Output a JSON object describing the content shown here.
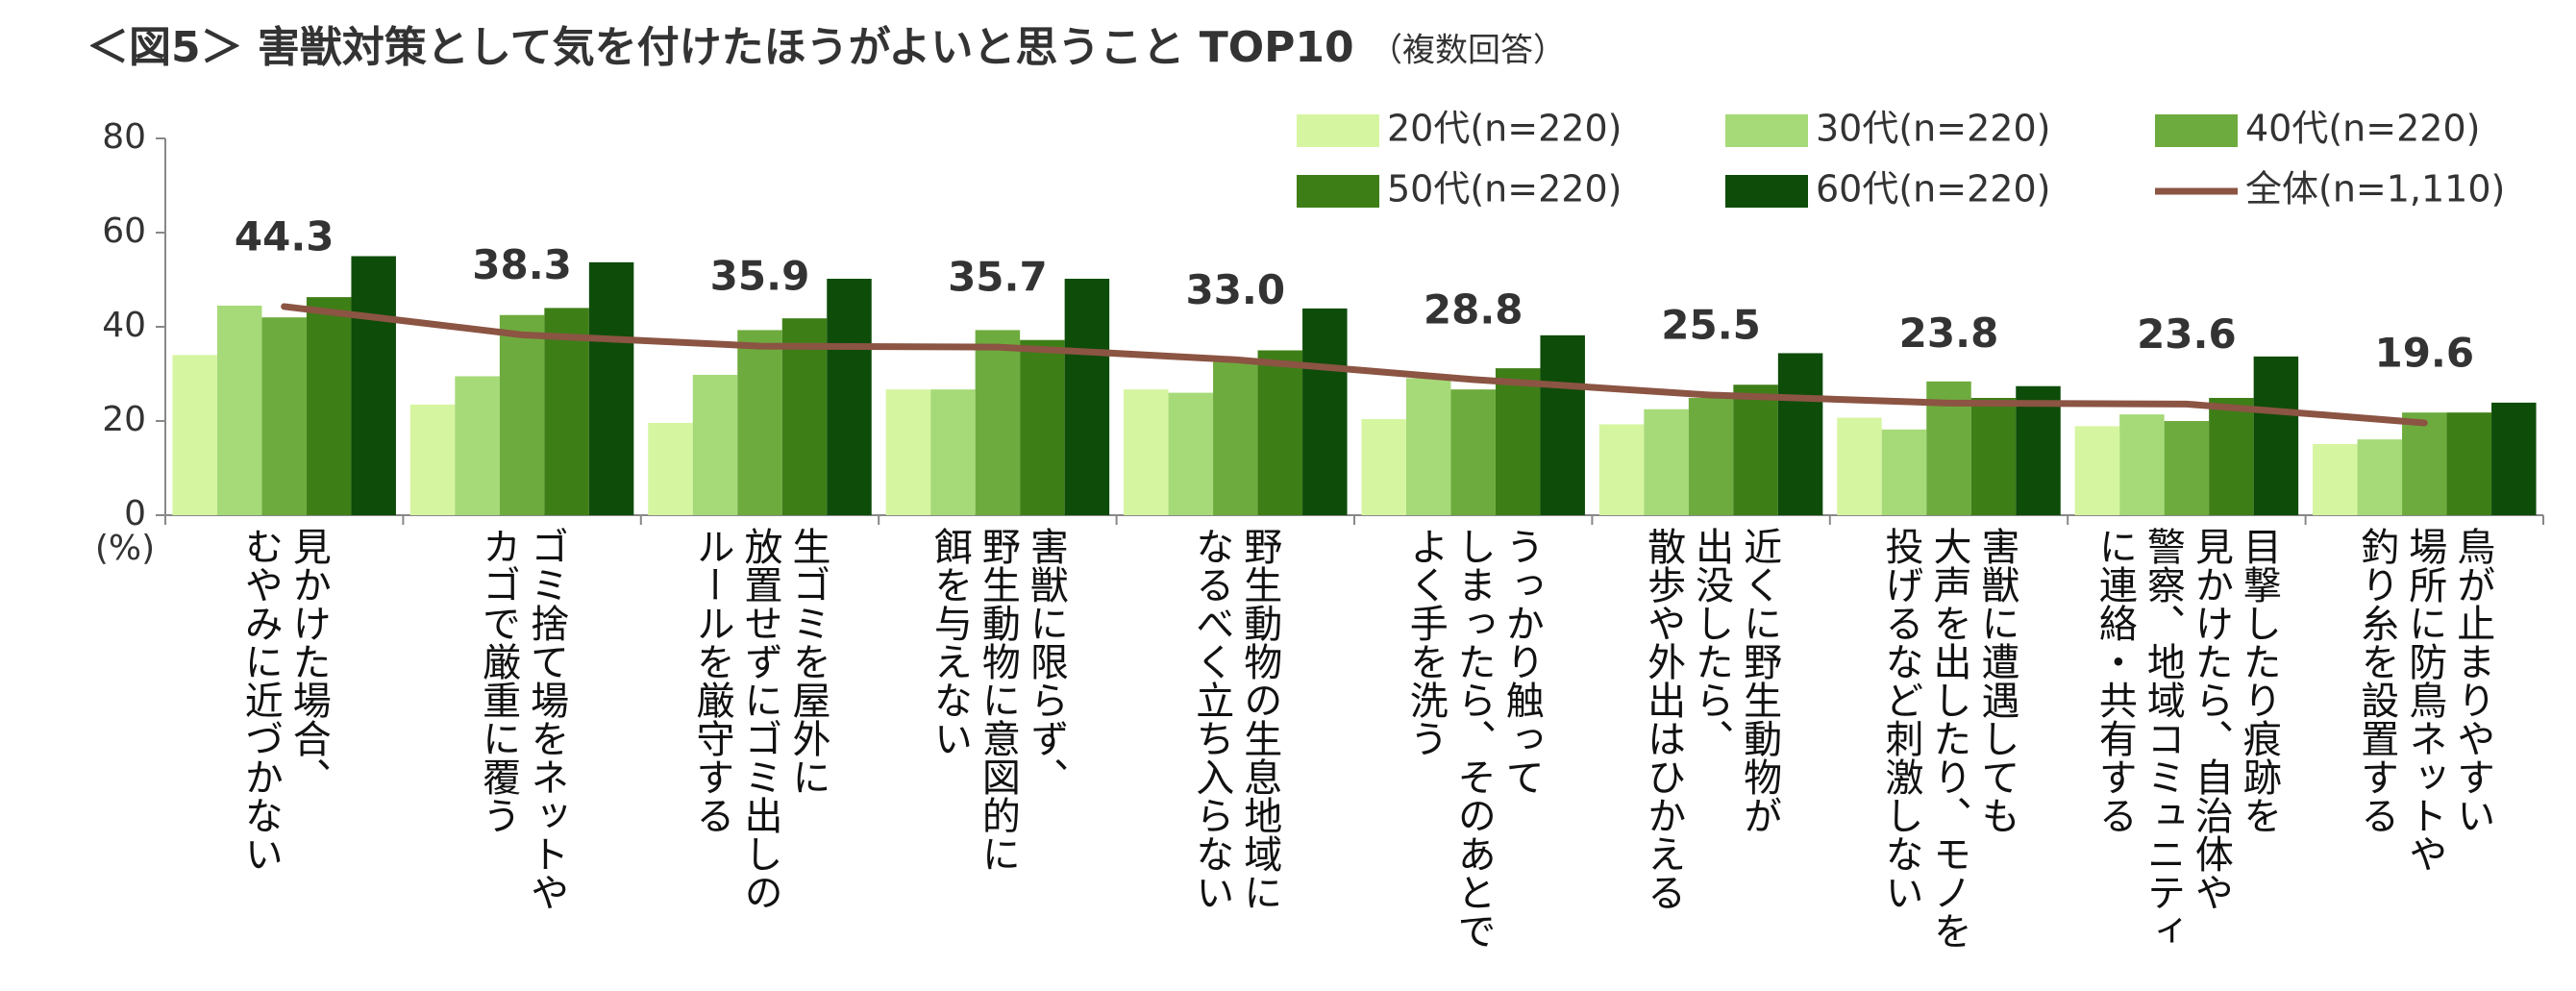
{
  "chart_data": {
    "type": "bar",
    "title": "＜図5＞ 害獣対策として気を付けたほうがよいと思うこと TOP10",
    "subtitle": "（複数回答）",
    "y_label": "(%)",
    "categories": [
      "見かけた場合、\nむやみに近づかない",
      "ゴミ捨て場をネットや\nカゴで厳重に覆う",
      "生ゴミを屋外に\n放置せずにゴミ出しの\nルールを厳守する",
      "害獣に限らず、\n野生動物に意図的に\n餌を与えない",
      "野生動物の生息地域に\nなるべく立ち入らない",
      "うっかり触って\nしまったら、そのあとで\nよく手を洗う",
      "近くに野生動物が\n出没したら、\n散歩や外出はひかえる",
      "害獣に遭遇しても\n大声を出したり、モノを\n投げるなど刺激しない",
      "目撃したり痕跡を\n見かけたら、自治体や\n警察、地域コミュニティ\nに連絡・共有する",
      "鳥が止まりやすい\n場所に防鳥ネットや\n釣り糸を設置する"
    ],
    "series": [
      {
        "name": "20代(n=220)",
        "color": "#d6f5a0",
        "values": [
          34,
          23.5,
          19.6,
          26.7,
          26.7,
          20.4,
          19.3,
          20.7,
          18.9,
          15.1
        ]
      },
      {
        "name": "30代(n=220)",
        "color": "#a6da78",
        "values": [
          44.5,
          29.5,
          29.8,
          26.7,
          26,
          29.1,
          22.5,
          18.2,
          21.4,
          16.1
        ]
      },
      {
        "name": "40代(n=220)",
        "color": "#6eab3e",
        "values": [
          42,
          42.5,
          39.3,
          39.3,
          32.7,
          26.7,
          24.9,
          28.4,
          20,
          21.8
        ]
      },
      {
        "name": "50代(n=220)",
        "color": "#3e7e17",
        "values": [
          46.3,
          44,
          41.8,
          37.2,
          35,
          31.2,
          27.7,
          24.9,
          24.9,
          21.8
        ]
      },
      {
        "name": "60代(n=220)",
        "color": "#0e4c0a",
        "values": [
          55,
          53.7,
          50.2,
          50.2,
          43.9,
          38.2,
          34.4,
          27.4,
          33.7,
          23.9
        ]
      },
      {
        "name": "全体(n=1,110)",
        "color": "#8b5443",
        "type": "line",
        "values": [
          44.3,
          38.3,
          35.9,
          35.7,
          33.0,
          28.8,
          25.5,
          23.8,
          23.6,
          19.6
        ],
        "value_labels": [
          "44.3",
          "38.3",
          "35.9",
          "35.7",
          "33.0",
          "28.8",
          "25.5",
          "23.8",
          "23.6",
          "19.6"
        ]
      }
    ],
    "ylim": [
      0,
      80
    ],
    "yticks": [
      0,
      20,
      40,
      60,
      80
    ],
    "grid": false
  }
}
